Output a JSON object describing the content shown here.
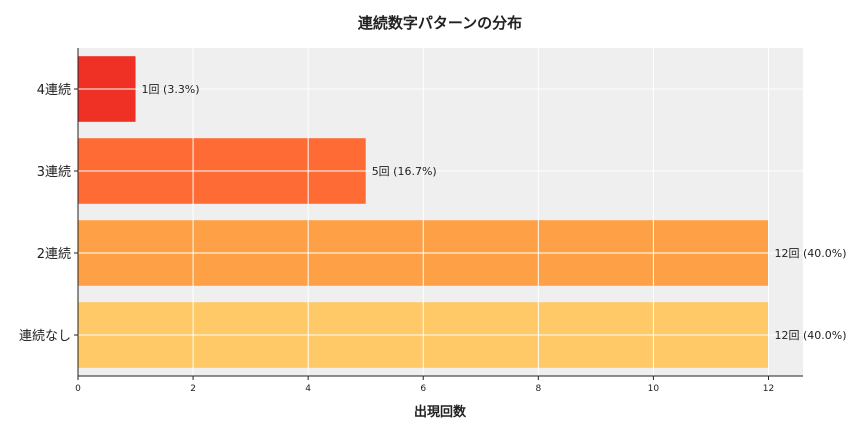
{
  "chart_data": {
    "type": "bar",
    "orientation": "horizontal",
    "title": "連続数字パターンの分布",
    "xlabel": "出現回数",
    "ylabel": "",
    "categories": [
      "4連続",
      "3連続",
      "2連続",
      "連続なし"
    ],
    "values": [
      1,
      5,
      12,
      12
    ],
    "data_labels": [
      "1回 (3.3%)",
      "5回 (16.7%)",
      "12回 (40.0%)",
      "12回 (40.0%)"
    ],
    "colors": [
      "#ee3124",
      "#ff6b35",
      "#fea046",
      "#fec966"
    ],
    "xlim": [
      0,
      12.6
    ],
    "xticks": [
      0,
      2,
      4,
      6,
      8,
      10,
      12
    ],
    "grid": true,
    "background": "#efefef"
  }
}
